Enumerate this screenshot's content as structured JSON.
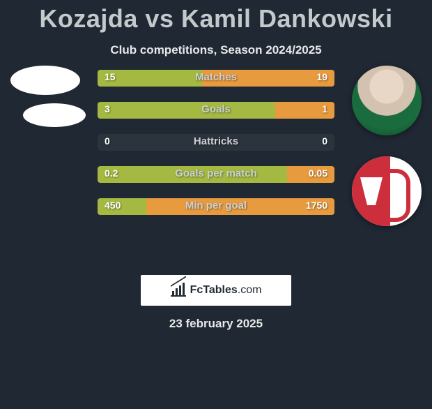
{
  "title": "Kozajda vs Kamil Dankowski",
  "subtitle": "Club competitions, Season 2024/2025",
  "date": "23 february 2025",
  "branding_text": "FcTables",
  "branding_suffix": ".com",
  "colors": {
    "background": "#1f2833",
    "bar_left": "#a3b941",
    "bar_right": "#e79a3e",
    "bar_neutral": "#2b333c",
    "title_color": "#c4c9cb",
    "text_color": "#e8eaea",
    "club_red": "#cc2e3b",
    "club_white": "#ffffff"
  },
  "bars": [
    {
      "label": "Matches",
      "left_value": "15",
      "right_value": "19",
      "left_pct": 44.1,
      "right_pct": 55.9
    },
    {
      "label": "Goals",
      "left_value": "3",
      "right_value": "1",
      "left_pct": 75.0,
      "right_pct": 25.0
    },
    {
      "label": "Hattricks",
      "left_value": "0",
      "right_value": "0",
      "left_pct": 0.0,
      "right_pct": 0.0
    },
    {
      "label": "Goals per match",
      "left_value": "0.2",
      "right_value": "0.05",
      "left_pct": 80.0,
      "right_pct": 20.0
    },
    {
      "label": "Min per goal",
      "left_value": "450",
      "right_value": "1750",
      "left_pct": 20.5,
      "right_pct": 79.5
    }
  ]
}
